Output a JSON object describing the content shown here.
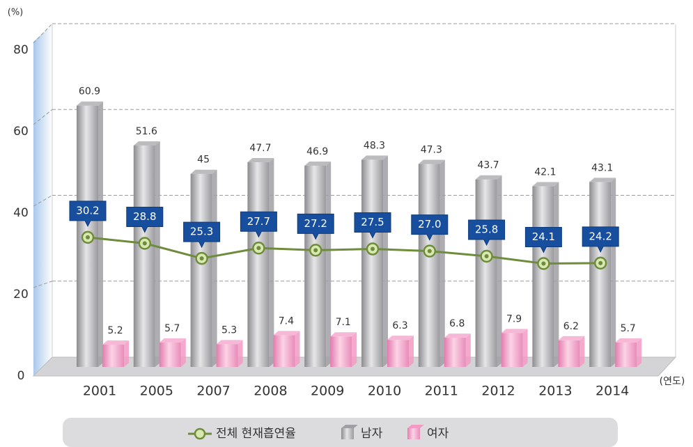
{
  "chart_data": {
    "type": "bar",
    "y_label": "(%)",
    "x_label": "(연도)",
    "categories": [
      "2001",
      "2005",
      "2007",
      "2008",
      "2009",
      "2010",
      "2011",
      "2012",
      "2013",
      "2014"
    ],
    "series": [
      {
        "name": "전체 현재흡연율",
        "type": "line",
        "color": "#6e8c3c",
        "values": [
          30.2,
          28.8,
          25.3,
          27.7,
          27.2,
          27.5,
          27.0,
          25.8,
          24.1,
          24.2
        ],
        "value_labels": [
          "30.2",
          "28.8",
          "25.3",
          "27.7",
          "27.2",
          "27.5",
          "27.0",
          "25.8",
          "24.1",
          "24.2"
        ]
      },
      {
        "name": "남자",
        "color": "#a0a0a4",
        "values": [
          60.9,
          51.6,
          45,
          47.7,
          46.9,
          48.3,
          47.3,
          43.7,
          42.1,
          43.1
        ]
      },
      {
        "name": "여자",
        "color": "#f29ac4",
        "values": [
          5.2,
          5.7,
          5.3,
          7.4,
          7.1,
          6.3,
          6.8,
          7.9,
          6.2,
          5.7
        ]
      }
    ],
    "ylim": [
      0,
      80
    ],
    "yticks": [
      0,
      20,
      40,
      60,
      80
    ],
    "grid": true
  }
}
